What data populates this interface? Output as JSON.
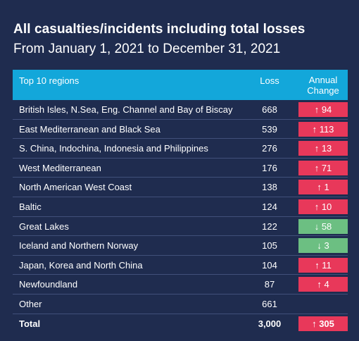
{
  "title": "All casualties/incidents including total losses",
  "subtitle": "From January 1, 2021 to December 31, 2021",
  "colors": {
    "background": "#1f2c4f",
    "header": "#13a7da",
    "increase": "#e8385a",
    "decrease": "#6cbf82"
  },
  "chart_data": {
    "type": "table",
    "columns": [
      "Top 10 regions",
      "Loss",
      "Annual Change"
    ],
    "rows": [
      {
        "region": "British Isles, N.Sea, Eng. Channel and Bay of Biscay",
        "loss": "668",
        "change": "↑ 94",
        "direction": "up"
      },
      {
        "region": "East Mediterranean and Black Sea",
        "loss": "539",
        "change": "↑ 113",
        "direction": "up"
      },
      {
        "region": "S. China, Indochina, Indonesia and Philippines",
        "loss": "276",
        "change": "↑ 13",
        "direction": "up"
      },
      {
        "region": "West Mediterranean",
        "loss": "176",
        "change": "↑ 71",
        "direction": "up"
      },
      {
        "region": "North American West Coast",
        "loss": "138",
        "change": "↑ 1",
        "direction": "up"
      },
      {
        "region": "Baltic",
        "loss": "124",
        "change": "↑ 10",
        "direction": "up"
      },
      {
        "region": "Great Lakes",
        "loss": "122",
        "change": "↓ 58",
        "direction": "down"
      },
      {
        "region": "Iceland and Northern Norway",
        "loss": "105",
        "change": "↓ 3",
        "direction": "down"
      },
      {
        "region": "Japan, Korea and North China",
        "loss": "104",
        "change": "↑ 11",
        "direction": "up"
      },
      {
        "region": "Newfoundland",
        "loss": "87",
        "change": "↑ 4",
        "direction": "up"
      },
      {
        "region": "Other",
        "loss": "661",
        "change": "",
        "direction": "none"
      }
    ],
    "total": {
      "region": "Total",
      "loss": "3,000",
      "change": "↑ 305",
      "direction": "up"
    }
  }
}
